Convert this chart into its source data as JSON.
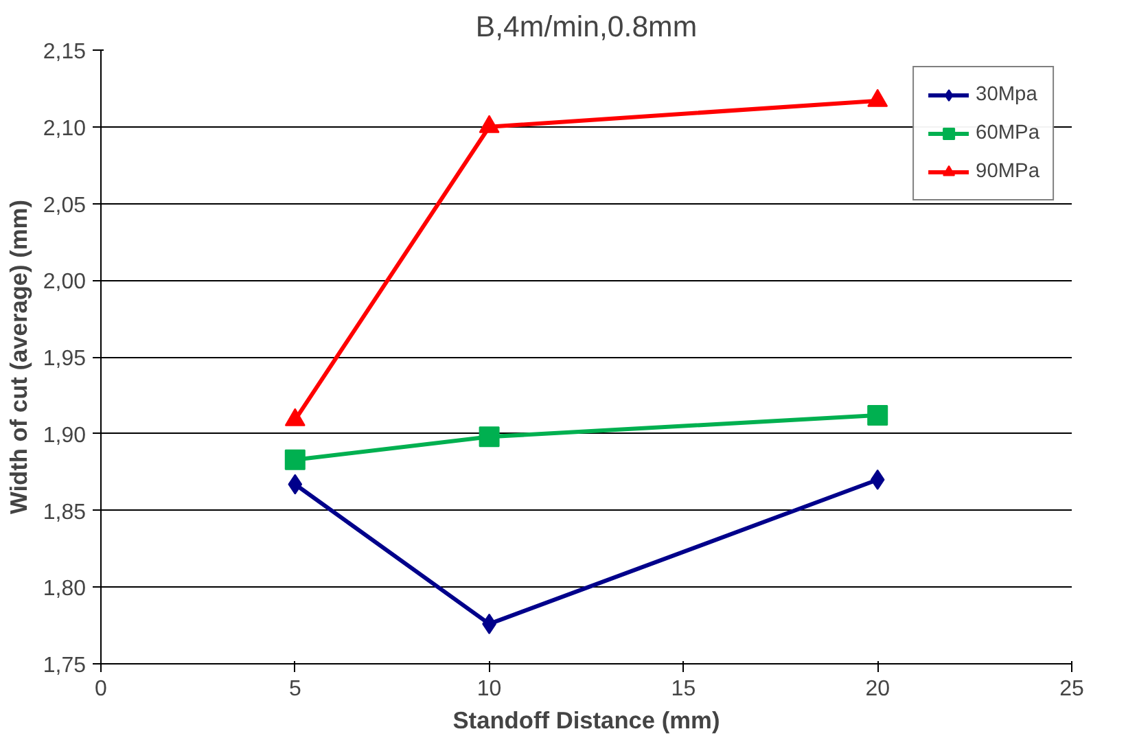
{
  "chart_data": {
    "type": "line",
    "title": "B,4m/min,0.8mm",
    "xlabel": "Standoff Distance (mm)",
    "ylabel": "Width of cut (average) (mm)",
    "x": [
      5,
      10,
      20
    ],
    "series": [
      {
        "name": "30Mpa",
        "color": "#00008b",
        "marker": "diamond",
        "values": [
          1.867,
          1.776,
          1.87
        ]
      },
      {
        "name": "60MPa",
        "color": "#00b050",
        "marker": "square",
        "values": [
          1.883,
          1.898,
          1.912
        ]
      },
      {
        "name": "90MPa",
        "color": "#ff0000",
        "marker": "triangle",
        "values": [
          1.909,
          2.1,
          2.117
        ]
      }
    ],
    "xlim": [
      0,
      25
    ],
    "xticks": [
      0,
      5,
      10,
      15,
      20,
      25
    ],
    "ylim": [
      1.75,
      2.15
    ],
    "yticks": [
      {
        "value": 1.75,
        "label": "1,75"
      },
      {
        "value": 1.8,
        "label": "1,80"
      },
      {
        "value": 1.85,
        "label": "1,85"
      },
      {
        "value": 1.9,
        "label": "1,90"
      },
      {
        "value": 1.95,
        "label": "1,95"
      },
      {
        "value": 2.0,
        "label": "2,00"
      },
      {
        "value": 2.05,
        "label": "2,05"
      },
      {
        "value": 2.1,
        "label": "2,10"
      },
      {
        "value": 2.15,
        "label": "2,15"
      }
    ],
    "grid": "y",
    "legend": "top right"
  }
}
